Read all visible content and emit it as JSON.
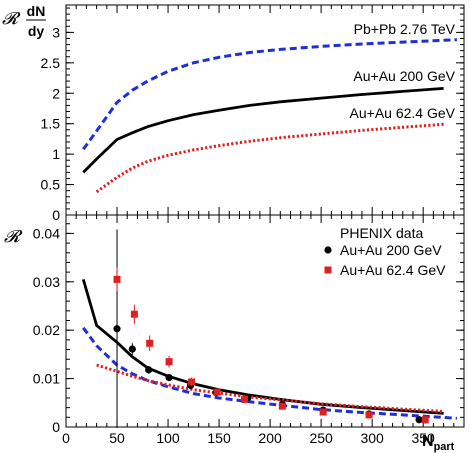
{
  "chart_data": [
    {
      "type": "line",
      "ylabel_symbol": "𝓡",
      "ylabel_fraction": {
        "numerator": "dN",
        "denominator": "dy"
      },
      "ylim": [
        0,
        3.45
      ],
      "xlim": [
        0,
        390
      ],
      "yticks": [
        0,
        0.5,
        1,
        1.5,
        2,
        2.5,
        3
      ],
      "ytick_labels": [
        "0",
        "0.5",
        "1",
        "1.5",
        "2",
        "2.5",
        "3"
      ],
      "series": [
        {
          "name": "Pb+Pb 2.76 TeV",
          "style": "dashed",
          "color": "#1f2fd8",
          "x": [
            17,
            30,
            50,
            65,
            80,
            100,
            125,
            150,
            180,
            210,
            250,
            290,
            330,
            370,
            383
          ],
          "y": [
            1.08,
            1.38,
            1.85,
            2.05,
            2.2,
            2.36,
            2.5,
            2.59,
            2.67,
            2.72,
            2.77,
            2.81,
            2.84,
            2.87,
            2.88
          ]
        },
        {
          "name": "Au+Au 200 GeV",
          "style": "solid",
          "color": "#000000",
          "x": [
            17,
            30,
            50,
            65,
            80,
            100,
            125,
            150,
            180,
            210,
            250,
            290,
            330,
            370
          ],
          "y": [
            0.7,
            0.92,
            1.24,
            1.35,
            1.45,
            1.55,
            1.65,
            1.72,
            1.8,
            1.86,
            1.92,
            1.98,
            2.03,
            2.08
          ]
        },
        {
          "name": "Au+Au 62.4 GeV",
          "style": "dotted",
          "color": "#e02020",
          "x": [
            30,
            50,
            65,
            80,
            100,
            125,
            150,
            180,
            210,
            250,
            290,
            330,
            370
          ],
          "y": [
            0.38,
            0.62,
            0.77,
            0.88,
            0.98,
            1.07,
            1.14,
            1.21,
            1.27,
            1.33,
            1.39,
            1.44,
            1.49
          ]
        }
      ]
    },
    {
      "type": "line",
      "ylabel_symbol": "𝓡",
      "xlabel_main": "N",
      "xlabel_sub": "part",
      "xlim": [
        0,
        390
      ],
      "ylim": [
        0,
        0.0438
      ],
      "xticks": [
        0,
        50,
        100,
        150,
        200,
        250,
        300,
        350
      ],
      "xtick_labels": [
        "0",
        "50",
        "100",
        "150",
        "200",
        "250",
        "300",
        "350"
      ],
      "yticks": [
        0,
        0.01,
        0.02,
        0.03,
        0.04
      ],
      "ytick_labels": [
        "0",
        "0.01",
        "0.02",
        "0.03",
        "0.04"
      ],
      "legend_title": "PHENIX data",
      "series": [
        {
          "name": "Pb+Pb 2.76 TeV",
          "style": "dashed",
          "color": "#1f2fd8",
          "x": [
            17,
            30,
            50,
            65,
            80,
            100,
            125,
            150,
            180,
            210,
            250,
            290,
            330,
            383
          ],
          "y": [
            0.0205,
            0.0168,
            0.0128,
            0.011,
            0.0096,
            0.0083,
            0.0069,
            0.006,
            0.0052,
            0.0045,
            0.0036,
            0.003,
            0.0025,
            0.0018
          ]
        },
        {
          "name": "Au+Au 200 GeV",
          "style": "solid",
          "color": "#000000",
          "x": [
            17,
            30,
            50,
            65,
            80,
            100,
            125,
            150,
            180,
            210,
            250,
            290,
            330,
            370
          ],
          "y": [
            0.0305,
            0.021,
            0.0175,
            0.0145,
            0.0122,
            0.0105,
            0.0089,
            0.0077,
            0.0066,
            0.0057,
            0.0047,
            0.004,
            0.0034,
            0.0028
          ]
        },
        {
          "name": "Au+Au 62.4 GeV",
          "style": "dotted",
          "color": "#e02020",
          "x": [
            30,
            50,
            65,
            80,
            100,
            125,
            150,
            180,
            210,
            250,
            290,
            330,
            370
          ],
          "y": [
            0.0128,
            0.0115,
            0.0105,
            0.0096,
            0.0087,
            0.0077,
            0.007,
            0.0062,
            0.0056,
            0.0048,
            0.0042,
            0.0037,
            0.0032
          ]
        },
        {
          "name": "Au+Au 200 GeV",
          "kind": "points",
          "marker": "circle",
          "color": "#000000",
          "x": [
            50,
            65,
            81,
            101,
            122,
            147,
            178,
            212,
            252,
            297,
            346
          ],
          "y": [
            0.0203,
            0.0161,
            0.0118,
            0.0102,
            0.0086,
            0.0071,
            0.006,
            0.0047,
            0.0035,
            0.0027,
            0.0015
          ],
          "yerr": [
            0.0205,
            0.0012,
            0.0008,
            0.0006,
            0.0005,
            0.0005,
            0.0004,
            0.0004,
            0.0003,
            0.0003,
            0.0003
          ]
        },
        {
          "name": "Au+Au 62.4 GeV",
          "kind": "points",
          "marker": "square",
          "color": "#e02020",
          "x": [
            50,
            67,
            82,
            101,
            123,
            148,
            175,
            212,
            252,
            297,
            352
          ],
          "y": [
            0.0305,
            0.0233,
            0.0173,
            0.0135,
            0.0093,
            0.0072,
            0.0057,
            0.0043,
            0.0031,
            0.0025,
            0.0015
          ],
          "yerr": [
            0.0025,
            0.002,
            0.0016,
            0.0012,
            0.0009,
            0.0007,
            0.0006,
            0.0005,
            0.0004,
            0.0004,
            0.0004
          ]
        }
      ]
    }
  ]
}
